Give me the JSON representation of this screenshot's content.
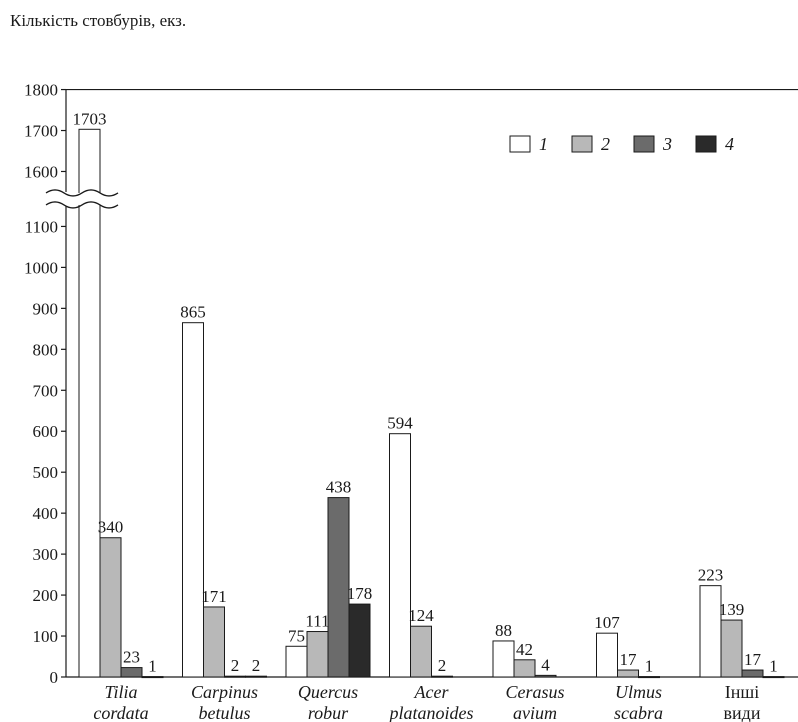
{
  "chart_data": {
    "type": "bar",
    "title": "",
    "ylabel": "Кількість стовбурів, екз.",
    "xlabel": "",
    "ylim": [
      0,
      1800
    ],
    "axis_break": [
      1150,
      1550
    ],
    "yticks": [
      0,
      100,
      200,
      300,
      400,
      500,
      600,
      700,
      800,
      900,
      1000,
      1100,
      1600,
      1700,
      1800
    ],
    "categories": [
      {
        "line1": "Tilia",
        "line2": "cordata",
        "italic": true
      },
      {
        "line1": "Carpinus",
        "line2": "betulus",
        "italic": true
      },
      {
        "line1": "Quercus",
        "line2": "robur",
        "italic": true
      },
      {
        "line1": "Acer",
        "line2": "platanoides",
        "italic": true
      },
      {
        "line1": "Cerasus",
        "line2": "avium",
        "italic": true
      },
      {
        "line1": "Ulmus",
        "line2": "scabra",
        "italic": true
      },
      {
        "line1": "Інші",
        "line2": "види",
        "italic": false
      }
    ],
    "series": [
      {
        "name": "1",
        "color": "#ffffff",
        "values": [
          1703,
          865,
          75,
          594,
          88,
          107,
          223
        ]
      },
      {
        "name": "2",
        "color": "#b8b8b8",
        "values": [
          340,
          171,
          111,
          124,
          42,
          17,
          139
        ]
      },
      {
        "name": "3",
        "color": "#6b6b6b",
        "values": [
          23,
          2,
          438,
          2,
          4,
          1,
          17
        ]
      },
      {
        "name": "4",
        "color": "#2a2a2a",
        "values": [
          1,
          2,
          178,
          null,
          null,
          null,
          1
        ]
      }
    ],
    "legend_position": "top-right",
    "grid": false
  }
}
